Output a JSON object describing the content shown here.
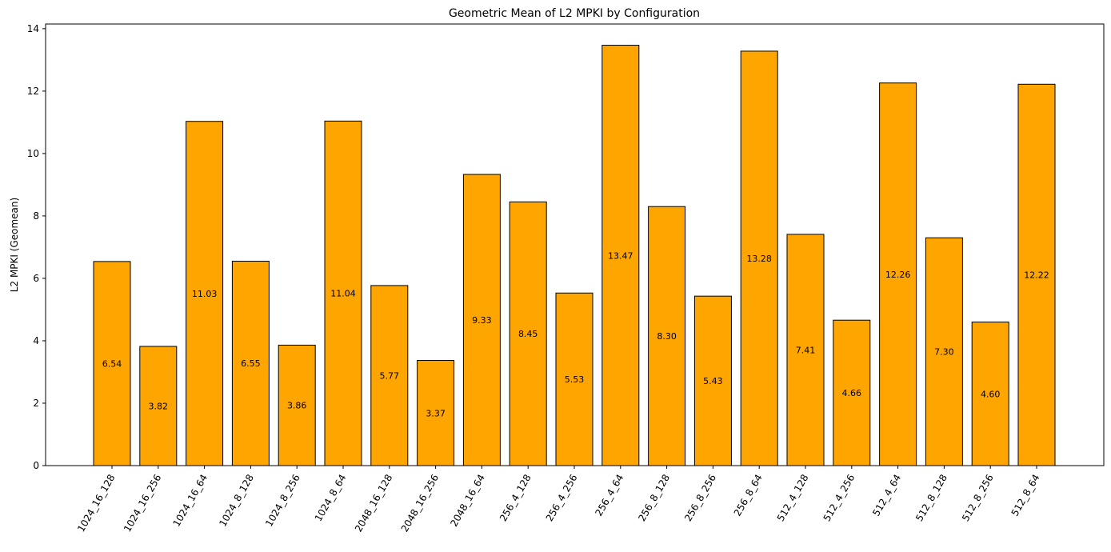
{
  "chart_data": {
    "type": "bar",
    "title": "Geometric Mean of L2 MPKI by Configuration",
    "xlabel": "",
    "ylabel": "L2 MPKI (Geomean)",
    "ylim": [
      0,
      14.15
    ],
    "yticks": [
      0,
      2,
      4,
      6,
      8,
      10,
      12,
      14
    ],
    "grid": false,
    "bar_color": "#ffa500",
    "edge_color": "#000000",
    "categories": [
      "1024_16_128",
      "1024_16_256",
      "1024_16_64",
      "1024_8_128",
      "1024_8_256",
      "1024_8_64",
      "2048_16_128",
      "2048_16_256",
      "2048_16_64",
      "256_4_128",
      "256_4_256",
      "256_4_64",
      "256_8_128",
      "256_8_256",
      "256_8_64",
      "512_4_128",
      "512_4_256",
      "512_4_64",
      "512_8_128",
      "512_8_256",
      "512_8_64"
    ],
    "values": [
      6.54,
      3.82,
      11.03,
      6.55,
      3.86,
      11.04,
      5.77,
      3.37,
      9.33,
      8.45,
      5.53,
      13.47,
      8.3,
      5.43,
      13.28,
      7.41,
      4.66,
      12.26,
      7.3,
      4.6,
      12.22
    ],
    "data_labels": [
      "6.54",
      "3.82",
      "11.03",
      "6.55",
      "3.86",
      "11.04",
      "5.77",
      "3.37",
      "9.33",
      "8.45",
      "5.53",
      "13.47",
      "8.30",
      "5.43",
      "13.28",
      "7.41",
      "4.66",
      "12.26",
      "7.30",
      "4.60",
      "12.22"
    ]
  }
}
